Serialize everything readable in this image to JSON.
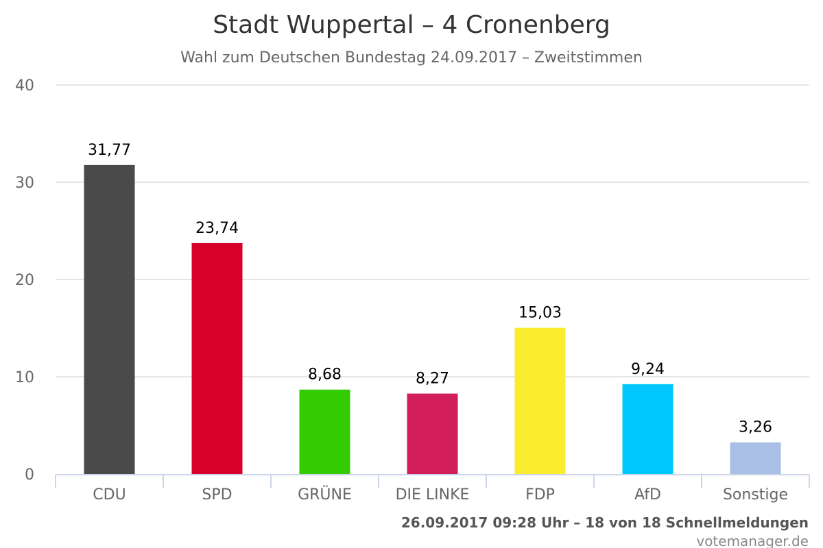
{
  "chart_data": {
    "type": "bar",
    "title": "Stadt Wuppertal – 4 Cronenberg",
    "subtitle": "Wahl zum Deutschen Bundestag 24.09.2017 – Zweitstimmen",
    "categories": [
      "CDU",
      "SPD",
      "GRÜNE",
      "DIE LINKE",
      "FDP",
      "AfD",
      "Sonstige"
    ],
    "values": [
      31.77,
      23.74,
      8.68,
      8.27,
      15.03,
      9.24,
      3.26
    ],
    "value_labels": [
      "31,77",
      "23,74",
      "8,68",
      "8,27",
      "15,03",
      "9,24",
      "3,26"
    ],
    "colors": [
      "#4a4a4a",
      "#d6002a",
      "#33cc00",
      "#d11e5a",
      "#faec2f",
      "#00c8ff",
      "#aabfe6"
    ],
    "ylim": [
      0,
      40
    ],
    "yticks": [
      "0",
      "10",
      "20",
      "30",
      "40"
    ],
    "grid": true,
    "legend": "none"
  },
  "credits": {
    "line": "26.09.2017 09:28 Uhr – 18 von 18 Schnellmeldungen",
    "source": "votemanager.de"
  }
}
